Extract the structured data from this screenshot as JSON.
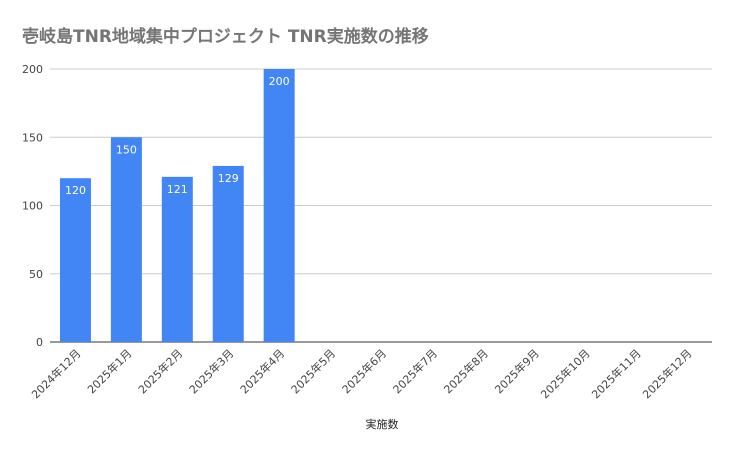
{
  "chart_data": {
    "type": "bar",
    "title": "壱岐島TNR地域集中プロジェクト  TNR実施数の推移",
    "xlabel": "実施数",
    "ylabel": "",
    "categories": [
      "2024年12月",
      "2025年1月",
      "2025年2月",
      "2025年3月",
      "2025年4月",
      "2025年5月",
      "2025年6月",
      "2025年7月",
      "2025年8月",
      "2025年9月",
      "2025年10月",
      "2025年11月",
      "2025年12月"
    ],
    "values": [
      120,
      150,
      121,
      129,
      200,
      null,
      null,
      null,
      null,
      null,
      null,
      null,
      null
    ],
    "ylim": [
      0,
      200
    ],
    "yticks": [
      0,
      50,
      100,
      150,
      200
    ],
    "grid": true,
    "legend": "none",
    "bar_color": "#4285f4",
    "grid_color": "#cccccc"
  }
}
